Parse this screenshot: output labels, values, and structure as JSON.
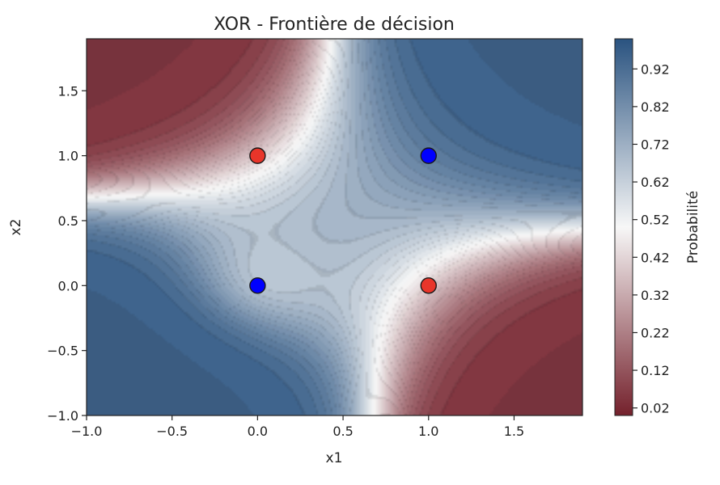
{
  "chart_data": {
    "type": "heatmap",
    "title": "XOR - Frontière de décision",
    "xlabel": "x1",
    "ylabel": "x2",
    "xlim": [
      -1.0,
      1.9
    ],
    "ylim": [
      -1.0,
      1.9
    ],
    "xticks": [
      -1.0,
      -0.5,
      0.0,
      0.5,
      1.0,
      1.5
    ],
    "yticks": [
      -1.0,
      -0.5,
      0.0,
      0.5,
      1.0,
      1.5
    ],
    "x_tick_labels": [
      "−1.0",
      "−0.5",
      "0.0",
      "0.5",
      "1.0",
      "1.5"
    ],
    "y_tick_labels": [
      "−1.0",
      "−0.5",
      "0.0",
      "0.5",
      "1.0",
      "1.5"
    ],
    "colorbar": {
      "label": "Probabilité",
      "min": 0.0,
      "max": 1.0,
      "ticks": [
        0.02,
        0.12,
        0.22,
        0.32,
        0.42,
        0.52,
        0.62,
        0.72,
        0.82,
        0.92
      ],
      "tick_labels": [
        "0.02",
        "0.12",
        "0.22",
        "0.32",
        "0.42",
        "0.52",
        "0.62",
        "0.72",
        "0.82",
        "0.92"
      ],
      "low_color": "#74212c",
      "mid_color": "#f7f7f7",
      "high_color": "#2a5380"
    },
    "points": [
      {
        "x": 0,
        "y": 0,
        "class": 0,
        "color": "#0000ff"
      },
      {
        "x": 0,
        "y": 1,
        "class": 1,
        "color": "#e8352a"
      },
      {
        "x": 1,
        "y": 0,
        "class": 1,
        "color": "#e8352a"
      },
      {
        "x": 1,
        "y": 1,
        "class": 0,
        "color": "#0000ff"
      }
    ]
  }
}
